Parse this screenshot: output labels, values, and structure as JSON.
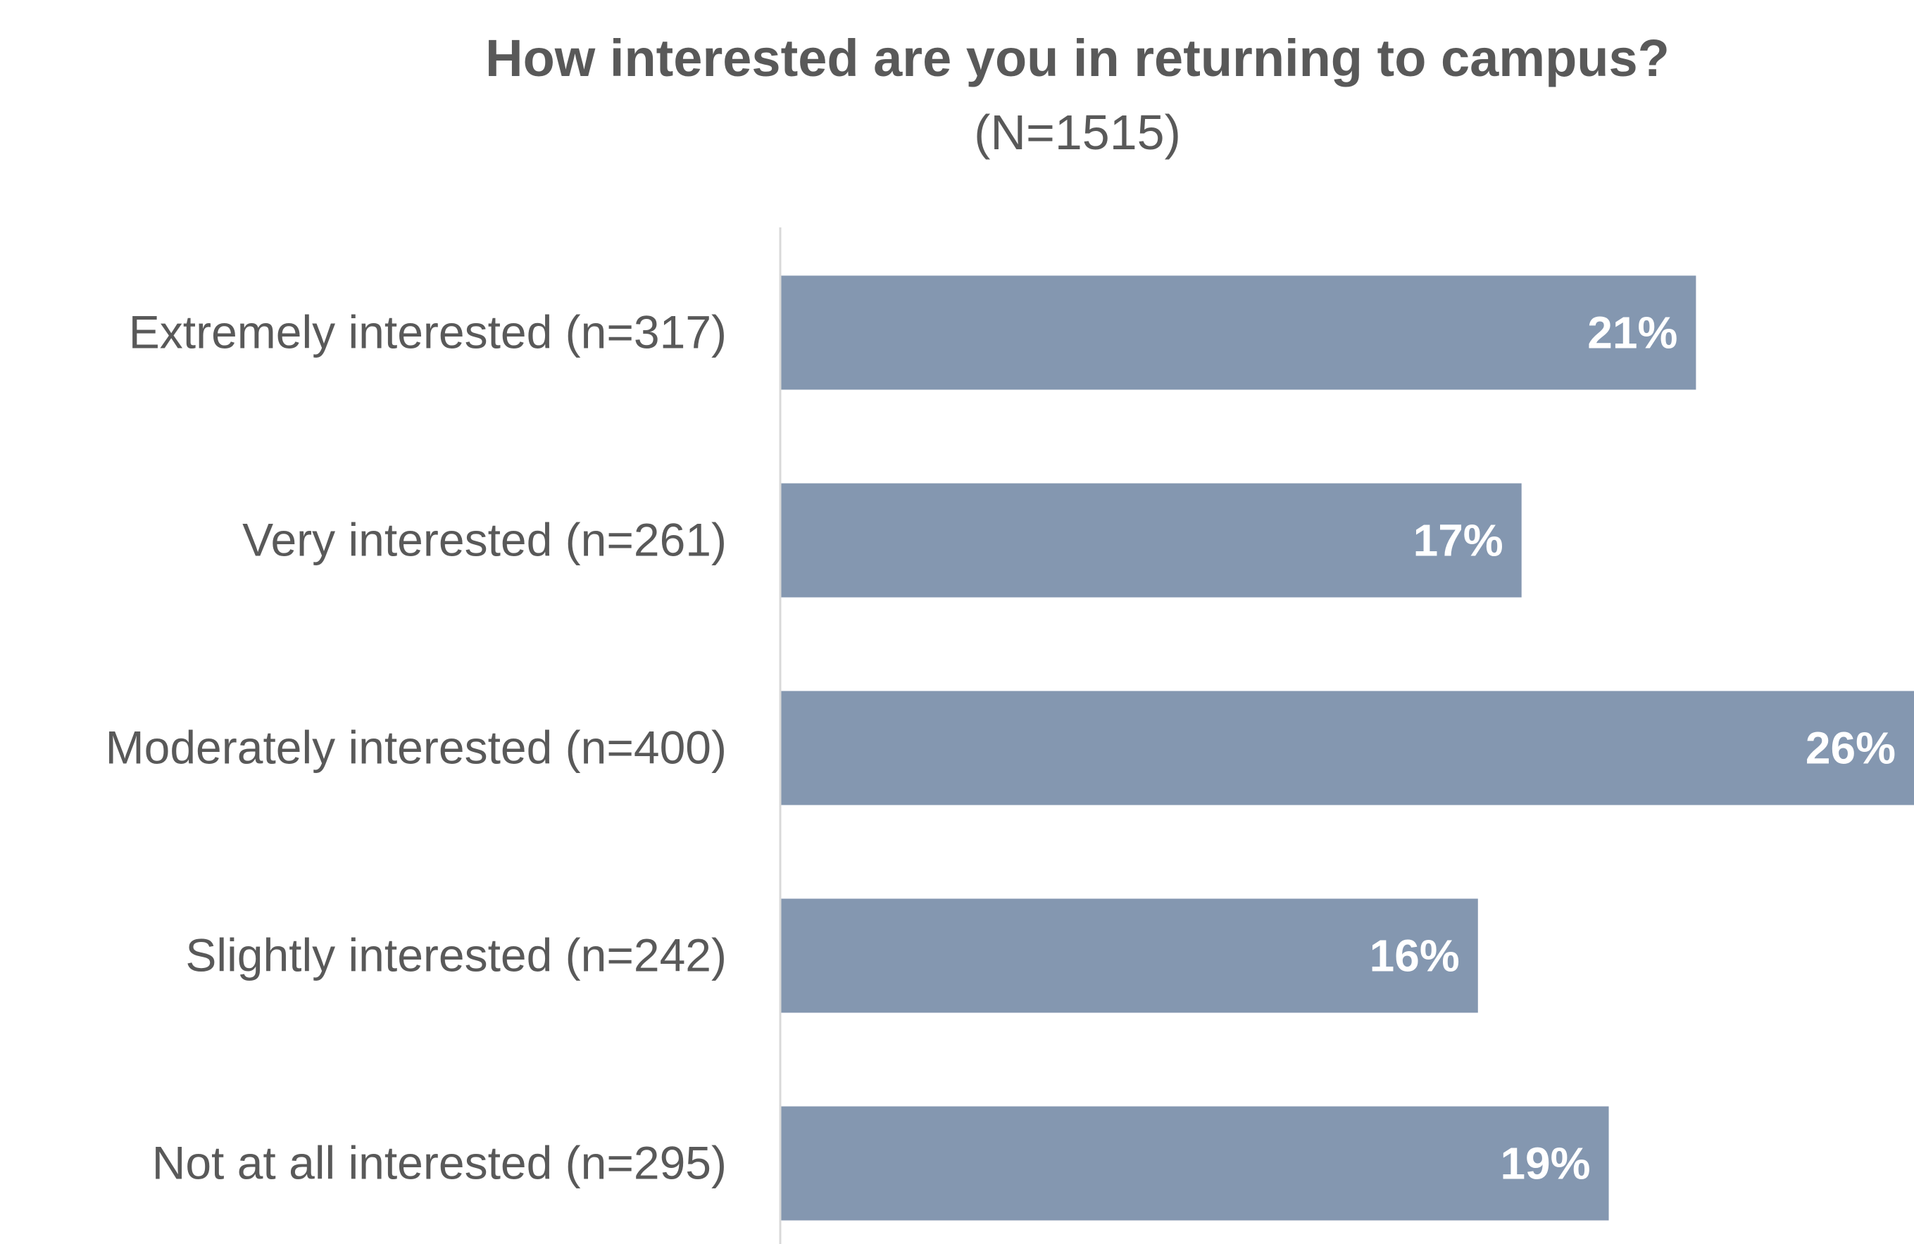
{
  "chart_data": {
    "type": "bar",
    "orientation": "horizontal",
    "title": "How interested are you in returning to campus?",
    "subtitle": "(N=1515)",
    "categories": [
      "Extremely interested (n=317)",
      "Very interested (n=261)",
      "Moderately interested (n=400)",
      "Slightly interested (n=242)",
      "Not at all interested (n=295)"
    ],
    "values": [
      21,
      17,
      26,
      16,
      19
    ],
    "value_labels": [
      "21%",
      "17%",
      "26%",
      "16%",
      "19%"
    ],
    "value_unit": "%",
    "xlim": [
      0,
      26
    ],
    "grid": false,
    "bar_color": "#8497b0",
    "axis_color": "#d9d9d9",
    "text_color": "#595959",
    "label_color": "#ffffff"
  }
}
